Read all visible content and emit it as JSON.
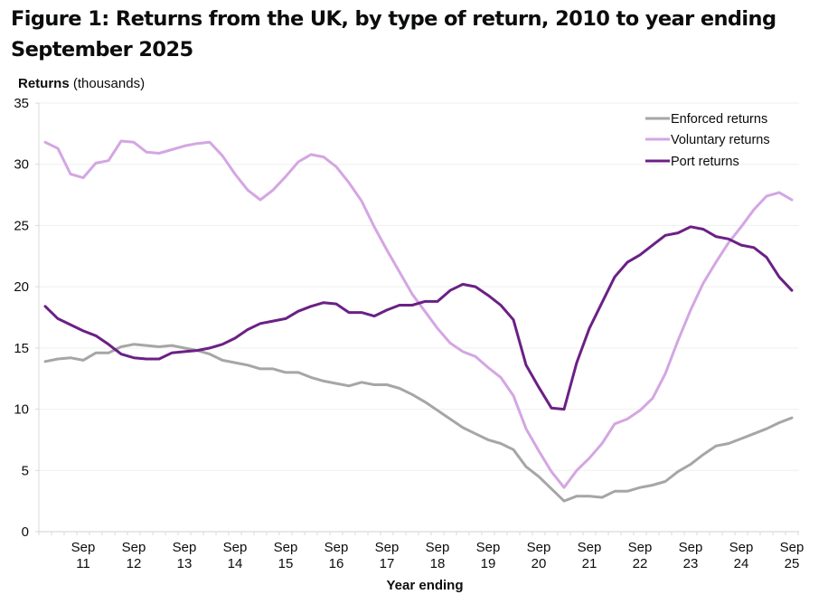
{
  "title": "Figure 1: Returns from the UK, by type of return, 2010 to year ending September 2025",
  "chart_data": {
    "type": "line",
    "title": "Figure 1: Returns from the UK, by type of return, 2010 to year ending September 2025",
    "ylabel_bold": "Returns",
    "ylabel_rest": "(thousands)",
    "xlabel": "Year ending",
    "ylim": [
      0,
      35
    ],
    "yticks": [
      0,
      5,
      10,
      15,
      20,
      25,
      30,
      35
    ],
    "grid": true,
    "legend_position": "top-right",
    "x": [
      "Dec 10",
      "Mar 11",
      "Jun 11",
      "Sep 11",
      "Dec 11",
      "Mar 12",
      "Jun 12",
      "Sep 12",
      "Dec 12",
      "Mar 13",
      "Jun 13",
      "Sep 13",
      "Dec 13",
      "Mar 14",
      "Jun 14",
      "Sep 14",
      "Dec 14",
      "Mar 15",
      "Jun 15",
      "Sep 15",
      "Dec 15",
      "Mar 16",
      "Jun 16",
      "Sep 16",
      "Dec 16",
      "Mar 17",
      "Jun 17",
      "Sep 17",
      "Dec 17",
      "Mar 18",
      "Jun 18",
      "Sep 18",
      "Dec 18",
      "Mar 19",
      "Jun 19",
      "Sep 19",
      "Dec 19",
      "Mar 20",
      "Jun 20",
      "Sep 20",
      "Dec 20",
      "Mar 21",
      "Jun 21",
      "Sep 21",
      "Dec 21",
      "Mar 22",
      "Jun 22",
      "Sep 22",
      "Dec 22",
      "Mar 23",
      "Jun 23",
      "Sep 23",
      "Dec 23",
      "Mar 24",
      "Jun 24",
      "Sep 24",
      "Dec 24",
      "Mar 25",
      "Jun 25",
      "Sep 25"
    ],
    "xtick_labels": [
      {
        "top": "Sep",
        "bottom": "11",
        "index": 3
      },
      {
        "top": "Sep",
        "bottom": "12",
        "index": 7
      },
      {
        "top": "Sep",
        "bottom": "13",
        "index": 11
      },
      {
        "top": "Sep",
        "bottom": "14",
        "index": 15
      },
      {
        "top": "Sep",
        "bottom": "15",
        "index": 19
      },
      {
        "top": "Sep",
        "bottom": "16",
        "index": 23
      },
      {
        "top": "Sep",
        "bottom": "17",
        "index": 27
      },
      {
        "top": "Sep",
        "bottom": "18",
        "index": 31
      },
      {
        "top": "Sep",
        "bottom": "19",
        "index": 35
      },
      {
        "top": "Sep",
        "bottom": "20",
        "index": 39
      },
      {
        "top": "Sep",
        "bottom": "21",
        "index": 43
      },
      {
        "top": "Sep",
        "bottom": "22",
        "index": 47
      },
      {
        "top": "Sep",
        "bottom": "23",
        "index": 51
      },
      {
        "top": "Sep",
        "bottom": "24",
        "index": 55
      },
      {
        "top": "Sep",
        "bottom": "25",
        "index": 59
      }
    ],
    "series": [
      {
        "name": "Enforced returns",
        "color": "#a6a6a6",
        "values": [
          13.9,
          14.1,
          14.2,
          14.0,
          14.6,
          14.6,
          15.1,
          15.3,
          15.2,
          15.1,
          15.2,
          15.0,
          14.8,
          14.5,
          14.0,
          13.8,
          13.6,
          13.3,
          13.3,
          13.0,
          13.0,
          12.6,
          12.3,
          12.1,
          11.9,
          12.2,
          12.0,
          12.0,
          11.7,
          11.2,
          10.6,
          9.9,
          9.2,
          8.5,
          8.0,
          7.5,
          7.2,
          6.7,
          5.3,
          4.5,
          3.5,
          2.5,
          2.9,
          2.9,
          2.8,
          3.3,
          3.3,
          3.6,
          3.8,
          4.1,
          4.9,
          5.5,
          6.3,
          7.0,
          7.2,
          7.6,
          8.0,
          8.4,
          8.9,
          9.3
        ]
      },
      {
        "name": "Voluntary returns",
        "color": "#d4a6e3",
        "values": [
          31.8,
          31.3,
          29.2,
          28.9,
          30.1,
          30.3,
          31.9,
          31.8,
          31.0,
          30.9,
          31.2,
          31.5,
          31.7,
          31.8,
          30.7,
          29.2,
          27.9,
          27.1,
          27.9,
          29.0,
          30.2,
          30.8,
          30.6,
          29.8,
          28.5,
          27.0,
          24.9,
          23.0,
          21.2,
          19.4,
          18.0,
          16.6,
          15.4,
          14.7,
          14.3,
          13.4,
          12.6,
          11.1,
          8.4,
          6.6,
          4.9,
          3.6,
          5.0,
          6.0,
          7.2,
          8.8,
          9.2,
          9.9,
          10.9,
          12.9,
          15.6,
          18.1,
          20.3,
          22.0,
          23.6,
          24.9,
          26.3,
          27.4,
          27.7,
          27.1
        ]
      },
      {
        "name": "Port returns",
        "color": "#6b2085",
        "values": [
          18.4,
          17.4,
          16.9,
          16.4,
          16.0,
          15.3,
          14.5,
          14.2,
          14.1,
          14.1,
          14.6,
          14.7,
          14.8,
          15.0,
          15.3,
          15.8,
          16.5,
          17.0,
          17.2,
          17.4,
          18.0,
          18.4,
          18.7,
          18.6,
          17.9,
          17.9,
          17.6,
          18.1,
          18.5,
          18.5,
          18.8,
          18.8,
          19.7,
          20.2,
          20.0,
          19.3,
          18.5,
          17.3,
          13.6,
          11.8,
          10.1,
          10.0,
          13.8,
          16.6,
          18.7,
          20.8,
          22.0,
          22.6,
          23.4,
          24.2,
          24.4,
          24.9,
          24.7,
          24.1,
          23.9,
          23.4,
          23.2,
          22.4,
          20.8,
          19.7
        ]
      }
    ]
  }
}
